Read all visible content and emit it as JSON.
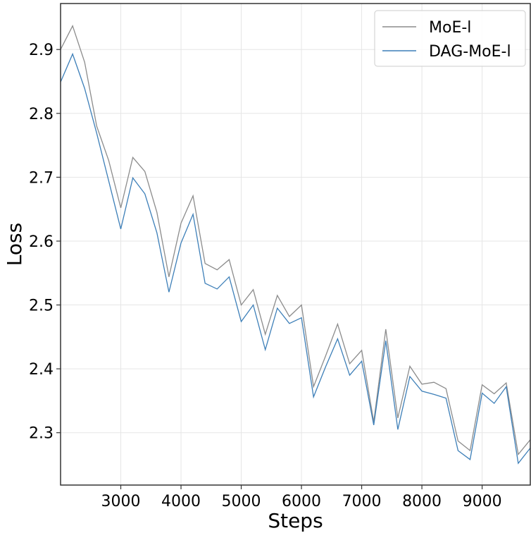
{
  "chart_data": {
    "type": "line",
    "title": "",
    "xlabel": "Steps",
    "ylabel": "Loss",
    "xlim": [
      2000,
      9800
    ],
    "ylim": [
      2.218,
      2.972
    ],
    "xticks": [
      3000,
      4000,
      5000,
      6000,
      7000,
      8000,
      9000
    ],
    "yticks": [
      2.3,
      2.4,
      2.5,
      2.6,
      2.7,
      2.8,
      2.9
    ],
    "ytick_labels": [
      "2.3",
      "2.4",
      "2.5",
      "2.6",
      "2.7",
      "2.8",
      "2.9"
    ],
    "grid": true,
    "legend_position": "top-right",
    "x": [
      2000,
      2200,
      2400,
      2600,
      2800,
      3000,
      3200,
      3400,
      3600,
      3800,
      4000,
      4200,
      4400,
      4600,
      4800,
      5000,
      5200,
      5400,
      5600,
      5800,
      6000,
      6200,
      6400,
      6600,
      6800,
      7000,
      7200,
      7400,
      7600,
      7800,
      8000,
      8200,
      8400,
      8600,
      8800,
      9000,
      9200,
      9400,
      9600,
      9800
    ],
    "series": [
      {
        "name": "MoE-l",
        "color": "#8c8c8c",
        "values": [
          2.9,
          2.937,
          2.88,
          2.78,
          2.726,
          2.652,
          2.731,
          2.709,
          2.645,
          2.544,
          2.628,
          2.671,
          2.565,
          2.555,
          2.571,
          2.5,
          2.524,
          2.454,
          2.515,
          2.482,
          2.5,
          2.372,
          2.42,
          2.47,
          2.408,
          2.429,
          2.317,
          2.462,
          2.323,
          2.404,
          2.376,
          2.379,
          2.369,
          2.287,
          2.272,
          2.375,
          2.361,
          2.378,
          2.266,
          2.289
        ]
      },
      {
        "name": "DAG-MoE-l",
        "color": "#3d7fb8",
        "values": [
          2.849,
          2.893,
          2.839,
          2.769,
          2.694,
          2.619,
          2.699,
          2.674,
          2.613,
          2.52,
          2.597,
          2.642,
          2.534,
          2.525,
          2.544,
          2.474,
          2.5,
          2.43,
          2.495,
          2.471,
          2.48,
          2.356,
          2.403,
          2.447,
          2.39,
          2.412,
          2.312,
          2.444,
          2.305,
          2.388,
          2.365,
          2.36,
          2.354,
          2.272,
          2.258,
          2.362,
          2.346,
          2.372,
          2.252,
          2.276
        ]
      }
    ]
  }
}
